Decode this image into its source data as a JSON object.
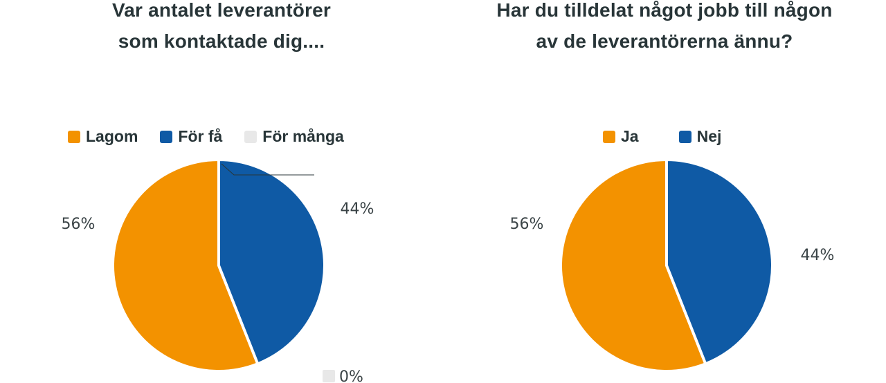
{
  "chart_data": [
    {
      "type": "pie",
      "title": "Var antalet leverantörer som kontaktade dig....",
      "title_lines": [
        "Var antalet leverantörer",
        "som kontaktade dig...."
      ],
      "legend": [
        "Lagom",
        "För få",
        "För många"
      ],
      "legend_placement": "top",
      "slices": [
        {
          "label": "Lagom",
          "value": 56,
          "display": "56%",
          "color": "#F39200"
        },
        {
          "label": "För få",
          "value": 44,
          "display": "44%",
          "color": "#0F5AA5"
        },
        {
          "label": "För många",
          "value": 0,
          "display": "0%",
          "color": "#E8E8E8"
        }
      ]
    },
    {
      "type": "pie",
      "title": "Har du tilldelat något jobb till någon av de leverantörerna ännu?",
      "title_lines": [
        "Har du tilldelat något jobb till någon",
        "av de leverantörerna ännu?"
      ],
      "legend": [
        "Ja",
        "Nej"
      ],
      "legend_placement": "top",
      "slices": [
        {
          "label": "Ja",
          "value": 56,
          "display": "56%",
          "color": "#F39200"
        },
        {
          "label": "Nej",
          "value": 44,
          "display": "44%",
          "color": "#0F5AA5"
        }
      ]
    }
  ]
}
